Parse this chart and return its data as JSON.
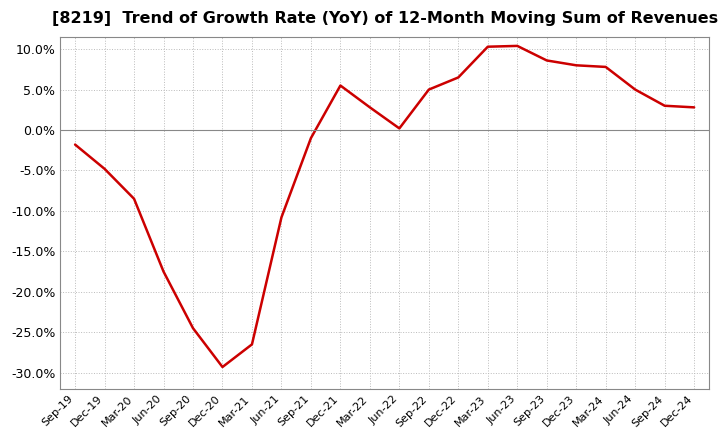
{
  "title": "[8219]  Trend of Growth Rate (YoY) of 12-Month Moving Sum of Revenues",
  "title_fontsize": 11.5,
  "line_color": "#cc0000",
  "line_width": 1.8,
  "background_color": "#ffffff",
  "plot_bg_color": "#ffffff",
  "grid_color": "#bbbbbb",
  "ylim": [
    -0.32,
    0.115
  ],
  "yticks": [
    -0.3,
    -0.25,
    -0.2,
    -0.15,
    -0.1,
    -0.05,
    0.0,
    0.05,
    0.1
  ],
  "x_labels": [
    "Sep-19",
    "Dec-19",
    "Mar-20",
    "Jun-20",
    "Sep-20",
    "Dec-20",
    "Mar-21",
    "Jun-21",
    "Sep-21",
    "Dec-21",
    "Mar-22",
    "Jun-22",
    "Sep-22",
    "Dec-22",
    "Mar-23",
    "Jun-23",
    "Sep-23",
    "Dec-23",
    "Mar-24",
    "Jun-24",
    "Sep-24",
    "Dec-24"
  ],
  "y_values": [
    -0.018,
    -0.048,
    -0.085,
    -0.175,
    -0.245,
    -0.293,
    -0.265,
    -0.108,
    -0.01,
    0.055,
    0.028,
    0.002,
    0.05,
    0.065,
    0.103,
    0.104,
    0.086,
    0.08,
    0.078,
    0.05,
    0.03,
    0.028
  ]
}
